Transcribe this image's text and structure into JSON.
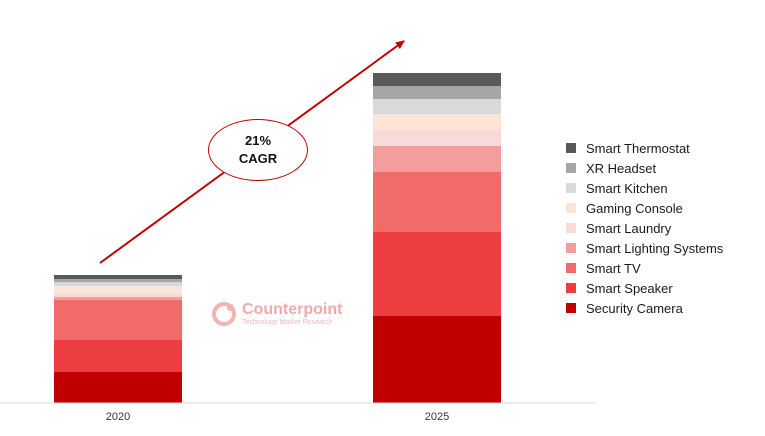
{
  "chart_data": {
    "type": "bar",
    "stacked": true,
    "categories": [
      "2020",
      "2025"
    ],
    "series": [
      {
        "name": "Security Camera",
        "color": "#c00000",
        "values": [
          31,
          87
        ]
      },
      {
        "name": "Smart Speaker",
        "color": "#ef3e42",
        "values": [
          32,
          84
        ]
      },
      {
        "name": "Smart TV",
        "color": "#f26b6b",
        "values": [
          40,
          60
        ]
      },
      {
        "name": "Smart Lighting Systems",
        "color": "#f59c9c",
        "values": [
          3,
          26
        ]
      },
      {
        "name": "Smart Laundry",
        "color": "#fad9d9",
        "values": [
          3,
          16
        ]
      },
      {
        "name": "Gaming Console",
        "color": "#fce4d6",
        "values": [
          8,
          16
        ]
      },
      {
        "name": "Smart Kitchen",
        "color": "#d9d9d9",
        "values": [
          4,
          15
        ]
      },
      {
        "name": "XR Headset",
        "color": "#a6a6a6",
        "values": [
          3,
          13
        ]
      },
      {
        "name": "Smart Thermostat",
        "color": "#595959",
        "values": [
          4,
          13
        ]
      }
    ],
    "annotation": {
      "line1": "21%",
      "line2": "CAGR"
    },
    "grid": false,
    "legend_position": "right"
  },
  "watermark": {
    "name": "Counterpoint",
    "tagline": "Technology Market Research"
  }
}
